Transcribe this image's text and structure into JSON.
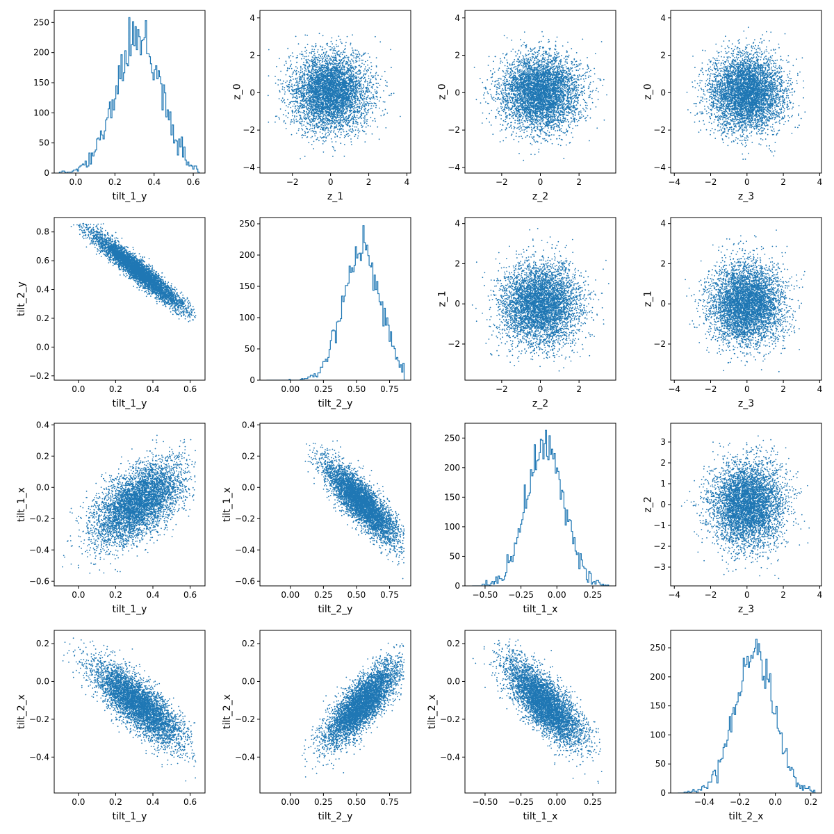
{
  "colors": {
    "series": "#1f77b4",
    "axis": "#000000",
    "background": "#ffffff"
  },
  "chart_data": [
    {
      "row": 0,
      "col": 0,
      "type": "histogram",
      "xlabel": "tilt_1_y",
      "ylabel": "",
      "xlim": [
        -0.11,
        0.66
      ],
      "ylim": [
        0,
        270
      ],
      "xticks": [
        0.0,
        0.2,
        0.4,
        0.6
      ],
      "yticks": [
        0,
        50,
        100,
        150,
        200,
        250
      ],
      "dist": {
        "mean": 0.32,
        "std": 0.12,
        "skew": -0.6,
        "min": -0.09,
        "max": 0.63
      },
      "hist": {
        "bins": 110,
        "peak": 258
      }
    },
    {
      "row": 0,
      "col": 1,
      "type": "scatter",
      "xlabel": "z_1",
      "ylabel": "z_0",
      "xlim": [
        -3.7,
        4.2
      ],
      "ylim": [
        -4.3,
        4.4
      ],
      "xticks": [
        -2,
        0,
        2,
        4
      ],
      "yticks": [
        -4,
        -2,
        0,
        2,
        4
      ],
      "dist": {
        "mx": 0,
        "my": 0,
        "sx": 1,
        "sy": 1,
        "rho": 0,
        "n": 5000,
        "clipx": [
          -3.5,
          4.0
        ],
        "clipy": [
          -3.9,
          4.1
        ]
      }
    },
    {
      "row": 0,
      "col": 2,
      "type": "scatter",
      "xlabel": "z_2",
      "ylabel": "z_0",
      "xlim": [
        -3.9,
        3.9
      ],
      "ylim": [
        -4.3,
        4.4
      ],
      "xticks": [
        -2,
        0,
        2
      ],
      "yticks": [
        -4,
        -2,
        0,
        2,
        4
      ],
      "dist": {
        "mx": 0,
        "my": 0,
        "sx": 1,
        "sy": 1,
        "rho": 0,
        "n": 5000,
        "clipx": [
          -3.6,
          3.6
        ],
        "clipy": [
          -3.9,
          4.1
        ]
      }
    },
    {
      "row": 0,
      "col": 3,
      "type": "scatter",
      "xlabel": "z_3",
      "ylabel": "z_0",
      "xlim": [
        -4.2,
        4.1
      ],
      "ylim": [
        -4.3,
        4.4
      ],
      "xticks": [
        -4,
        -2,
        0,
        2,
        4
      ],
      "yticks": [
        -4,
        -2,
        0,
        2,
        4
      ],
      "dist": {
        "mx": 0,
        "my": 0,
        "sx": 1,
        "sy": 1,
        "rho": 0,
        "n": 5000,
        "clipx": [
          -3.9,
          3.8
        ],
        "clipy": [
          -3.9,
          4.1
        ]
      }
    },
    {
      "row": 1,
      "col": 0,
      "type": "scatter",
      "xlabel": "tilt_1_y",
      "ylabel": "tilt_2_y",
      "xlim": [
        -0.13,
        0.68
      ],
      "ylim": [
        -0.23,
        0.9
      ],
      "xticks": [
        0.0,
        0.2,
        0.4,
        0.6
      ],
      "yticks": [
        -0.2,
        0.0,
        0.2,
        0.4,
        0.6,
        0.8
      ],
      "dist": {
        "mx": 0.32,
        "my": 0.53,
        "sx": 0.12,
        "sy": 0.13,
        "rho": -0.95,
        "n": 5000,
        "clipx": [
          -0.09,
          0.63
        ],
        "clipy": [
          -0.18,
          0.86
        ]
      }
    },
    {
      "row": 1,
      "col": 1,
      "type": "histogram",
      "xlabel": "tilt_2_y",
      "ylabel": "",
      "xlim": [
        -0.23,
        0.91
      ],
      "ylim": [
        0,
        260
      ],
      "xticks": [
        0.0,
        0.25,
        0.5,
        0.75
      ],
      "yticks": [
        0,
        50,
        100,
        150,
        200,
        250
      ],
      "dist": {
        "mean": 0.54,
        "std": 0.14,
        "skew": -0.6,
        "min": -0.18,
        "max": 0.86
      },
      "hist": {
        "bins": 110,
        "peak": 247
      }
    },
    {
      "row": 1,
      "col": 2,
      "type": "scatter",
      "xlabel": "z_2",
      "ylabel": "z_1",
      "xlim": [
        -3.9,
        3.9
      ],
      "ylim": [
        -3.8,
        4.3
      ],
      "xticks": [
        -2,
        0,
        2
      ],
      "yticks": [
        -2,
        0,
        2,
        4
      ],
      "dist": {
        "mx": 0,
        "my": 0,
        "sx": 1,
        "sy": 1,
        "rho": 0,
        "n": 5000,
        "clipx": [
          -3.6,
          3.6
        ],
        "clipy": [
          -3.5,
          4.0
        ]
      }
    },
    {
      "row": 1,
      "col": 3,
      "type": "scatter",
      "xlabel": "z_3",
      "ylabel": "z_1",
      "xlim": [
        -4.2,
        4.1
      ],
      "ylim": [
        -3.8,
        4.3
      ],
      "xticks": [
        -4,
        -2,
        0,
        2,
        4
      ],
      "yticks": [
        -2,
        0,
        2,
        4
      ],
      "dist": {
        "mx": 0,
        "my": 0,
        "sx": 1,
        "sy": 1,
        "rho": 0,
        "n": 5000,
        "clipx": [
          -3.9,
          3.8
        ],
        "clipy": [
          -3.5,
          4.0
        ]
      }
    },
    {
      "row": 2,
      "col": 0,
      "type": "scatter",
      "xlabel": "tilt_1_y",
      "ylabel": "tilt_1_x",
      "xlim": [
        -0.13,
        0.68
      ],
      "ylim": [
        -0.63,
        0.41
      ],
      "xticks": [
        0.0,
        0.2,
        0.4,
        0.6
      ],
      "yticks": [
        -0.6,
        -0.4,
        -0.2,
        0.0,
        0.2,
        0.4
      ],
      "dist": {
        "mx": 0.32,
        "my": -0.1,
        "sx": 0.12,
        "sy": 0.13,
        "rho": 0.55,
        "n": 5000,
        "clipx": [
          -0.09,
          0.63
        ],
        "clipy": [
          -0.59,
          0.36
        ]
      }
    },
    {
      "row": 2,
      "col": 1,
      "type": "scatter",
      "xlabel": "tilt_2_y",
      "ylabel": "tilt_1_x",
      "xlim": [
        -0.23,
        0.91
      ],
      "ylim": [
        -0.63,
        0.41
      ],
      "xticks": [
        0.0,
        0.25,
        0.5,
        0.75
      ],
      "yticks": [
        -0.6,
        -0.4,
        -0.2,
        0.0,
        0.2,
        0.4
      ],
      "dist": {
        "mx": 0.54,
        "my": -0.1,
        "sx": 0.14,
        "sy": 0.13,
        "rho": -0.85,
        "n": 5000,
        "clipx": [
          -0.18,
          0.86
        ],
        "clipy": [
          -0.59,
          0.36
        ]
      }
    },
    {
      "row": 2,
      "col": 2,
      "type": "histogram",
      "xlabel": "tilt_1_x",
      "ylabel": "",
      "xlim": [
        -0.64,
        0.41
      ],
      "ylim": [
        0,
        275
      ],
      "xticks": [
        -0.5,
        -0.25,
        0.0,
        0.25
      ],
      "yticks": [
        0,
        50,
        100,
        150,
        200,
        250
      ],
      "dist": {
        "mean": -0.08,
        "std": 0.13,
        "skew": 0,
        "min": -0.59,
        "max": 0.36
      },
      "hist": {
        "bins": 110,
        "peak": 263
      }
    },
    {
      "row": 2,
      "col": 3,
      "type": "scatter",
      "xlabel": "z_3",
      "ylabel": "z_2",
      "xlim": [
        -4.2,
        4.1
      ],
      "ylim": [
        -3.9,
        3.9
      ],
      "xticks": [
        -4,
        -2,
        0,
        2,
        4
      ],
      "yticks": [
        -3,
        -2,
        -1,
        0,
        1,
        2,
        3
      ],
      "dist": {
        "mx": 0,
        "my": 0,
        "sx": 1,
        "sy": 1,
        "rho": 0,
        "n": 5000,
        "clipx": [
          -3.9,
          3.8
        ],
        "clipy": [
          -3.6,
          3.6
        ]
      }
    },
    {
      "row": 3,
      "col": 0,
      "type": "scatter",
      "xlabel": "tilt_1_y",
      "ylabel": "tilt_2_x",
      "xlim": [
        -0.13,
        0.68
      ],
      "ylim": [
        -0.59,
        0.27
      ],
      "xticks": [
        0.0,
        0.2,
        0.4,
        0.6
      ],
      "yticks": [
        -0.4,
        -0.2,
        0.0,
        0.2
      ],
      "dist": {
        "mx": 0.32,
        "my": -0.12,
        "sx": 0.12,
        "sy": 0.11,
        "rho": -0.8,
        "n": 5000,
        "clipx": [
          -0.09,
          0.63
        ],
        "clipy": [
          -0.55,
          0.23
        ]
      }
    },
    {
      "row": 3,
      "col": 1,
      "type": "scatter",
      "xlabel": "tilt_2_y",
      "ylabel": "tilt_2_x",
      "xlim": [
        -0.23,
        0.91
      ],
      "ylim": [
        -0.59,
        0.27
      ],
      "xticks": [
        0.0,
        0.25,
        0.5,
        0.75
      ],
      "yticks": [
        -0.4,
        -0.2,
        0.0,
        0.2
      ],
      "dist": {
        "mx": 0.54,
        "my": -0.12,
        "sx": 0.14,
        "sy": 0.11,
        "rho": 0.8,
        "n": 5000,
        "clipx": [
          -0.18,
          0.86
        ],
        "clipy": [
          -0.55,
          0.23
        ]
      }
    },
    {
      "row": 3,
      "col": 2,
      "type": "scatter",
      "xlabel": "tilt_1_x",
      "ylabel": "tilt_2_x",
      "xlim": [
        -0.64,
        0.41
      ],
      "ylim": [
        -0.59,
        0.27
      ],
      "xticks": [
        -0.5,
        -0.25,
        0.0,
        0.25
      ],
      "yticks": [
        -0.4,
        -0.2,
        0.0,
        0.2
      ],
      "dist": {
        "mx": -0.08,
        "my": -0.12,
        "sx": 0.13,
        "sy": 0.11,
        "rho": -0.75,
        "n": 5000,
        "clipx": [
          -0.59,
          0.36
        ],
        "clipy": [
          -0.55,
          0.23
        ]
      }
    },
    {
      "row": 3,
      "col": 3,
      "type": "histogram",
      "xlabel": "tilt_2_x",
      "ylabel": "",
      "xlim": [
        -0.59,
        0.26
      ],
      "ylim": [
        0,
        280
      ],
      "xticks": [
        -0.4,
        -0.2,
        0.0,
        0.2
      ],
      "yticks": [
        0,
        50,
        100,
        150,
        200,
        250
      ],
      "dist": {
        "mean": -0.12,
        "std": 0.11,
        "skew": 0,
        "min": -0.55,
        "max": 0.23
      },
      "hist": {
        "bins": 110,
        "peak": 265
      }
    }
  ]
}
